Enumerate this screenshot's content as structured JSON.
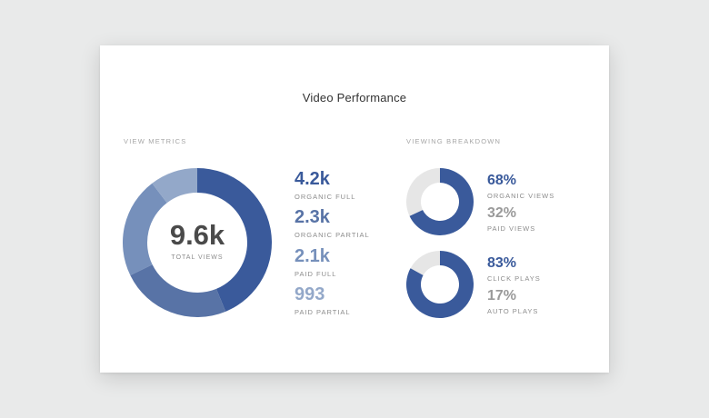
{
  "title": "Video Performance",
  "view_metrics": {
    "label": "VIEW METRICS",
    "total_value": "9.6k",
    "total_caption": "TOTAL VIEWS",
    "items": [
      {
        "value": "4.2k",
        "caption": "ORGANIC FULL",
        "color": "#3a5a9b"
      },
      {
        "value": "2.3k",
        "caption": "ORGANIC PARTIAL",
        "color": "#5873a6"
      },
      {
        "value": "2.1k",
        "caption": "PAID FULL",
        "color": "#7690bb"
      },
      {
        "value": "993",
        "caption": "PAID PARTIAL",
        "color": "#93a8c9"
      }
    ],
    "donut_segments": [
      4.2,
      2.3,
      2.1,
      0.993
    ]
  },
  "viewing_breakdown": {
    "label": "VIEWING BREAKDOWN",
    "pairs": [
      {
        "primary": {
          "value": "68%",
          "caption": "ORGANIC VIEWS",
          "color": "#3a5a9b"
        },
        "secondary": {
          "value": "32%",
          "caption": "PAID VIEWS",
          "color": "#9a9a9a"
        },
        "fraction": 0.68
      },
      {
        "primary": {
          "value": "83%",
          "caption": "CLICK PLAYS",
          "color": "#3a5a9b"
        },
        "secondary": {
          "value": "17%",
          "caption": "AUTO PLAYS",
          "color": "#9a9a9a"
        },
        "fraction": 0.83
      }
    ],
    "track_color": "#e6e6e6"
  }
}
